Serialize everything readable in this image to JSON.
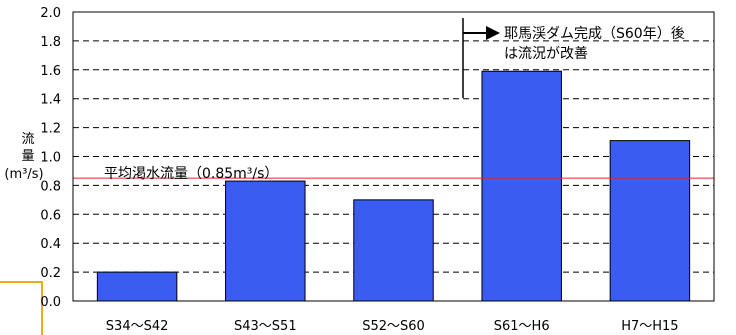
{
  "chart_data": {
    "type": "bar",
    "categories": [
      "S34～S42",
      "S43～S51",
      "S52～S60",
      "S61～H6",
      "H7～H15"
    ],
    "values": [
      0.2,
      0.83,
      0.7,
      1.59,
      1.11
    ],
    "ylim": [
      0,
      2.0
    ],
    "yticks": [
      "0.0",
      "0.2",
      "0.4",
      "0.6",
      "0.8",
      "1.0",
      "1.2",
      "1.4",
      "1.6",
      "1.8",
      "2.0"
    ],
    "ylabel_lines": [
      "流",
      "量",
      "(m³/s)"
    ],
    "grid": true,
    "bar_color": "#3a5cf0",
    "reference_line": {
      "value": 0.85,
      "color": "#e0262b",
      "label": "平均渇水流量（0.85m³/s）"
    },
    "annotation": {
      "line1": "耶馬渓ダム完成（S60年）後",
      "line2": "は流況が改善"
    }
  }
}
